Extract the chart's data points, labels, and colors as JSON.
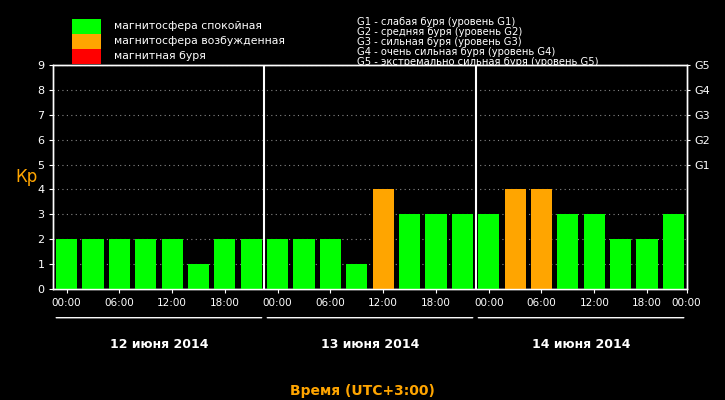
{
  "background_color": "#000000",
  "text_color": "#ffffff",
  "orange_color": "#ffa500",
  "bar_width": 0.8,
  "ylim": [
    0,
    9
  ],
  "yticks": [
    0,
    1,
    2,
    3,
    4,
    5,
    6,
    7,
    8,
    9
  ],
  "ylabel": "Кр",
  "xlabel": "Время (UTC+3:00)",
  "days": [
    "12 июня 2014",
    "13 июня 2014",
    "14 июня 2014"
  ],
  "kp_values": [
    2,
    2,
    2,
    2,
    2,
    1,
    2,
    2,
    2,
    2,
    2,
    1,
    4,
    3,
    3,
    3,
    3,
    4,
    4,
    3,
    3,
    2,
    2,
    3
  ],
  "colors": [
    "#00ff00",
    "#00ff00",
    "#00ff00",
    "#00ff00",
    "#00ff00",
    "#00ff00",
    "#00ff00",
    "#00ff00",
    "#00ff00",
    "#00ff00",
    "#00ff00",
    "#00ff00",
    "#ffa500",
    "#00ff00",
    "#00ff00",
    "#00ff00",
    "#00ff00",
    "#ffa500",
    "#ffa500",
    "#00ff00",
    "#00ff00",
    "#00ff00",
    "#00ff00",
    "#00ff00"
  ],
  "legend_items": [
    {
      "label": "магнитосфера спокойная",
      "color": "#00ff00"
    },
    {
      "label": "магнитосфера возбужденная",
      "color": "#ffa500"
    },
    {
      "label": "магнитная буря",
      "color": "#ff0000"
    }
  ],
  "g_labels": [
    "G1 - слабая буря (уровень G1)",
    "G2 - средняя буря (уровень G2)",
    "G3 - сильная буря (уровень G3)",
    "G4 - очень сильная буря (уровень G4)",
    "G5 - экстремально сильная буря (уровень G5)"
  ],
  "g_right_labels": [
    "G5",
    "G4",
    "G3",
    "G2",
    "G1"
  ],
  "g_right_yvals": [
    9,
    8,
    7,
    6,
    5
  ],
  "divider_color": "#ffffff",
  "grid_color": "#888888",
  "spine_color": "#ffffff"
}
